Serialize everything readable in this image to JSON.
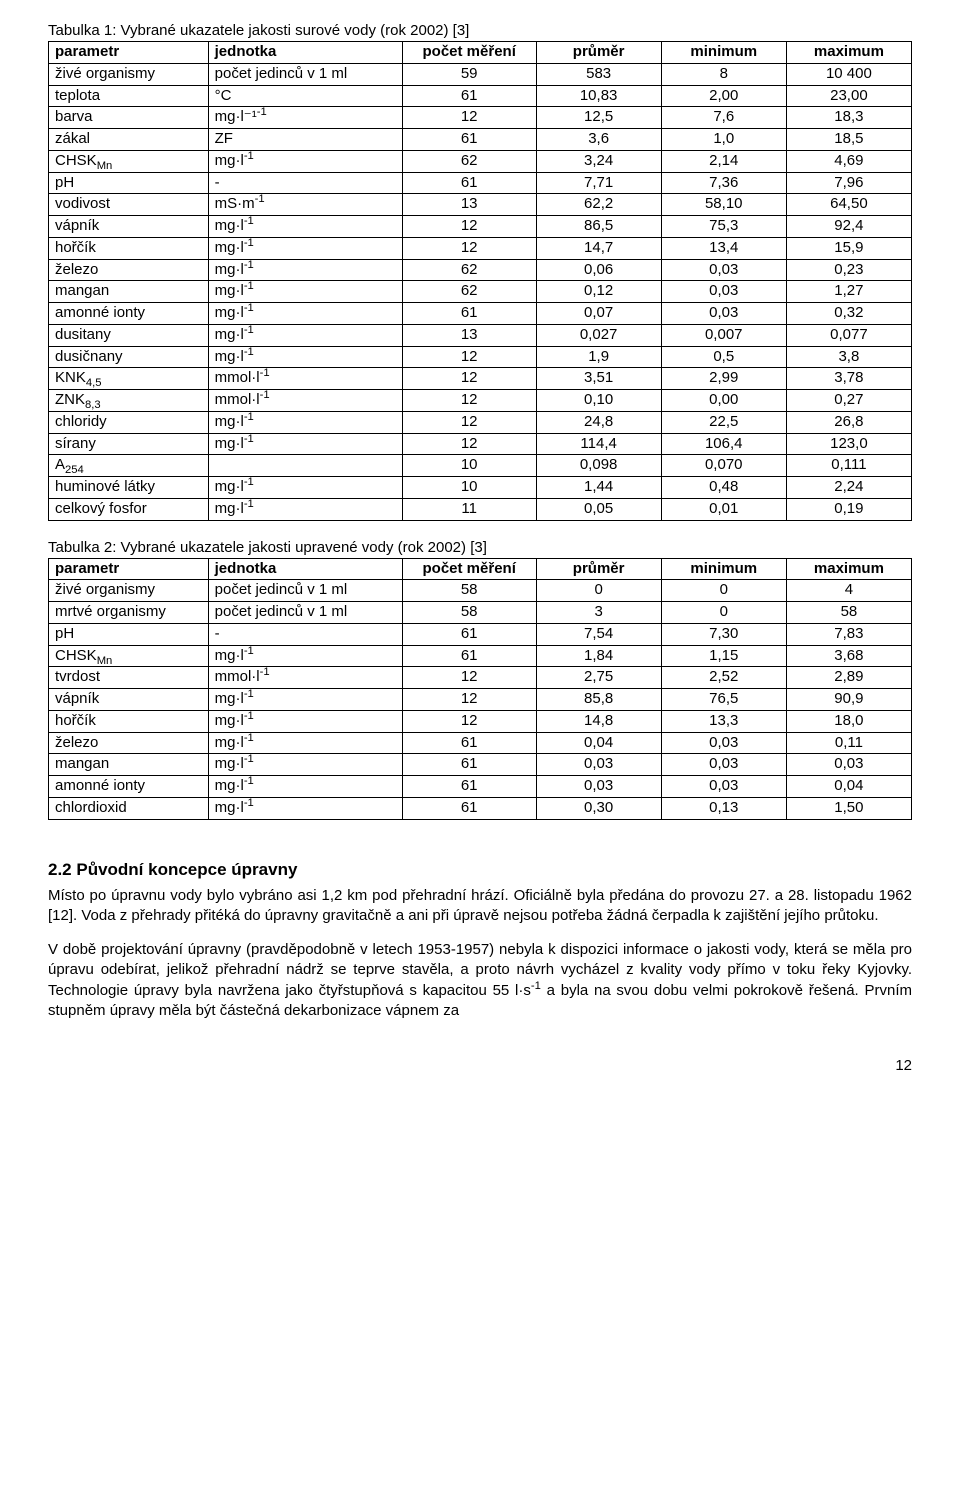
{
  "table1": {
    "caption": "Tabulka 1: Vybrané ukazatele jakosti surové vody (rok 2002) [3]",
    "headers": [
      "parametr",
      "jednotka",
      "počet měření",
      "průměr",
      "minimum",
      "maximum"
    ],
    "rows": [
      {
        "p": "živé organismy",
        "u": "počet jedinců v 1 ml",
        "n": "59",
        "avg": "583",
        "min": "8",
        "max": "10 400"
      },
      {
        "p": "teplota",
        "u": "°C",
        "n": "61",
        "avg": "10,83",
        "min": "2,00",
        "max": "23,00"
      },
      {
        "p": "barva",
        "u": "mg·l⁻¹",
        "sup": "-1",
        "n": "12",
        "avg": "12,5",
        "min": "7,6",
        "max": "18,3"
      },
      {
        "p": "zákal",
        "u": "ZF",
        "n": "61",
        "avg": "3,6",
        "min": "1,0",
        "max": "18,5"
      },
      {
        "p": "CHSK",
        "psub": "Mn",
        "u": "mg·l",
        "sup": "-1",
        "n": "62",
        "avg": "3,24",
        "min": "2,14",
        "max": "4,69"
      },
      {
        "p": "pH",
        "u": "-",
        "n": "61",
        "avg": "7,71",
        "min": "7,36",
        "max": "7,96"
      },
      {
        "p": "vodivost",
        "u": "mS·m",
        "sup": "-1",
        "n": "13",
        "avg": "62,2",
        "min": "58,10",
        "max": "64,50"
      },
      {
        "p": "vápník",
        "u": "mg·l",
        "sup": "-1",
        "n": "12",
        "avg": "86,5",
        "min": "75,3",
        "max": "92,4"
      },
      {
        "p": "hořčík",
        "u": "mg·l",
        "sup": "-1",
        "n": "12",
        "avg": "14,7",
        "min": "13,4",
        "max": "15,9"
      },
      {
        "p": "železo",
        "u": "mg·l",
        "sup": "-1",
        "n": "62",
        "avg": "0,06",
        "min": "0,03",
        "max": "0,23"
      },
      {
        "p": "mangan",
        "u": "mg·l",
        "sup": "-1",
        "n": "62",
        "avg": "0,12",
        "min": "0,03",
        "max": "1,27"
      },
      {
        "p": "amonné ionty",
        "u": "mg·l",
        "sup": "-1",
        "n": "61",
        "avg": "0,07",
        "min": "0,03",
        "max": "0,32"
      },
      {
        "p": "dusitany",
        "u": "mg·l",
        "sup": "-1",
        "n": "13",
        "avg": "0,027",
        "min": "0,007",
        "max": "0,077"
      },
      {
        "p": "dusičnany",
        "u": "mg·l",
        "sup": "-1",
        "n": "12",
        "avg": "1,9",
        "min": "0,5",
        "max": "3,8"
      },
      {
        "p": "KNK",
        "psub": "4,5",
        "u": "mmol·l",
        "sup": "-1",
        "n": "12",
        "avg": "3,51",
        "min": "2,99",
        "max": "3,78"
      },
      {
        "p": "ZNK",
        "psub": "8,3",
        "u": "mmol·l",
        "sup": "-1",
        "n": "12",
        "avg": "0,10",
        "min": "0,00",
        "max": "0,27"
      },
      {
        "p": "chloridy",
        "u": "mg·l",
        "sup": "-1",
        "n": "12",
        "avg": "24,8",
        "min": "22,5",
        "max": "26,8"
      },
      {
        "p": "sírany",
        "u": "mg·l",
        "sup": "-1",
        "n": "12",
        "avg": "114,4",
        "min": "106,4",
        "max": "123,0"
      },
      {
        "p": "A",
        "psub": "254",
        "u": "",
        "n": "10",
        "avg": "0,098",
        "min": "0,070",
        "max": "0,111"
      },
      {
        "p": "huminové látky",
        "u": "mg·l",
        "sup": "-1",
        "n": "10",
        "avg": "1,44",
        "min": "0,48",
        "max": "2,24"
      },
      {
        "p": "celkový fosfor",
        "u": "mg·l",
        "sup": "-1",
        "n": "11",
        "avg": "0,05",
        "min": "0,01",
        "max": "0,19"
      }
    ]
  },
  "table2": {
    "caption": "Tabulka 2: Vybrané ukazatele jakosti upravené vody (rok 2002) [3]",
    "headers": [
      "parametr",
      "jednotka",
      "počet měření",
      "průměr",
      "minimum",
      "maximum"
    ],
    "rows": [
      {
        "p": "živé organismy",
        "u": "počet jedinců v 1 ml",
        "n": "58",
        "avg": "0",
        "min": "0",
        "max": "4"
      },
      {
        "p": "mrtvé organismy",
        "u": "počet jedinců v 1 ml",
        "n": "58",
        "avg": "3",
        "min": "0",
        "max": "58"
      },
      {
        "p": "pH",
        "u": "-",
        "n": "61",
        "avg": "7,54",
        "min": "7,30",
        "max": "7,83"
      },
      {
        "p": "CHSK",
        "psub": "Mn",
        "u": "mg·l",
        "sup": "-1",
        "n": "61",
        "avg": "1,84",
        "min": "1,15",
        "max": "3,68"
      },
      {
        "p": "tvrdost",
        "u": "mmol·l",
        "sup": "-1",
        "n": "12",
        "avg": "2,75",
        "min": "2,52",
        "max": "2,89"
      },
      {
        "p": "vápník",
        "u": "mg·l",
        "sup": "-1",
        "n": "12",
        "avg": "85,8",
        "min": "76,5",
        "max": "90,9"
      },
      {
        "p": "hořčík",
        "u": "mg·l",
        "sup": "-1",
        "n": "12",
        "avg": "14,8",
        "min": "13,3",
        "max": "18,0"
      },
      {
        "p": "železo",
        "u": "mg·l",
        "sup": "-1",
        "n": "61",
        "avg": "0,04",
        "min": "0,03",
        "max": "0,11"
      },
      {
        "p": "mangan",
        "u": "mg·l",
        "sup": "-1",
        "n": "61",
        "avg": "0,03",
        "min": "0,03",
        "max": "0,03"
      },
      {
        "p": "amonné ionty",
        "u": "mg·l",
        "sup": "-1",
        "n": "61",
        "avg": "0,03",
        "min": "0,03",
        "max": "0,04"
      },
      {
        "p": "chlordioxid",
        "u": "mg·l",
        "sup": "-1",
        "n": "61",
        "avg": "0,30",
        "min": "0,13",
        "max": "1,50"
      }
    ]
  },
  "section": {
    "heading": "2.2   Původní koncepce úpravny",
    "p1": "Místo po úpravnu vody bylo vybráno asi 1,2 km pod přehradní hrází. Oficiálně byla předána do provozu 27. a 28. listopadu 1962 [12]. Voda z přehrady přitéká do úpravny gravitačně a ani při úpravě nejsou potřeba žádná čerpadla k zajištění jejího průtoku.",
    "p2a": "V době projektování úpravny (pravděpodobně v letech 1953-1957) nebyla k dispozici informace o jakosti vody, která se měla pro úpravu odebírat, jelikož přehradní nádrž se teprve stavěla, a proto návrh vycházel z kvality vody přímo v toku řeky Kyjovky. Technologie úpravy byla navržena jako čtyřstupňová s kapacitou 55 l·s",
    "p2sup": "-1",
    "p2b": " a byla na svou dobu velmi pokrokově řešená. Prvním stupněm úpravy měla být částečná dekarbonizace vápnem za"
  },
  "page_number": "12"
}
